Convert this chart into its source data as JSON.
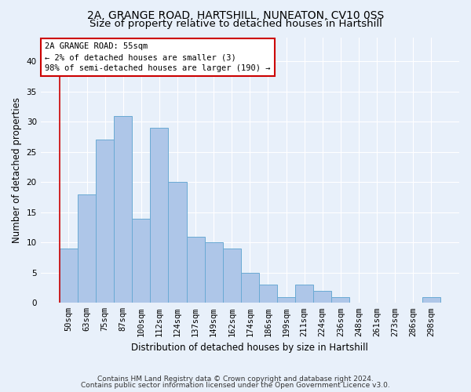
{
  "title_line1": "2A, GRANGE ROAD, HARTSHILL, NUNEATON, CV10 0SS",
  "title_line2": "Size of property relative to detached houses in Hartshill",
  "xlabel": "Distribution of detached houses by size in Hartshill",
  "ylabel": "Number of detached properties",
  "categories": [
    "50sqm",
    "63sqm",
    "75sqm",
    "87sqm",
    "100sqm",
    "112sqm",
    "124sqm",
    "137sqm",
    "149sqm",
    "162sqm",
    "174sqm",
    "186sqm",
    "199sqm",
    "211sqm",
    "224sqm",
    "236sqm",
    "248sqm",
    "261sqm",
    "273sqm",
    "286sqm",
    "298sqm"
  ],
  "values": [
    9,
    18,
    27,
    31,
    14,
    29,
    20,
    11,
    10,
    9,
    5,
    3,
    1,
    3,
    2,
    1,
    0,
    0,
    0,
    0,
    1
  ],
  "bar_color": "#aec6e8",
  "bar_edge_color": "#6aaad4",
  "annotation_line1": "2A GRANGE ROAD: 55sqm",
  "annotation_line2": "← 2% of detached houses are smaller (3)",
  "annotation_line3": "98% of semi-detached houses are larger (190) →",
  "annotation_box_color": "#ffffff",
  "annotation_box_edge": "#cc0000",
  "marker_line_color": "#cc0000",
  "ylim": [
    0,
    44
  ],
  "yticks": [
    0,
    5,
    10,
    15,
    20,
    25,
    30,
    35,
    40
  ],
  "footer_line1": "Contains HM Land Registry data © Crown copyright and database right 2024.",
  "footer_line2": "Contains public sector information licensed under the Open Government Licence v3.0.",
  "bg_color": "#e8f0fa",
  "plot_bg_color": "#e8f0fa",
  "grid_color": "#ffffff",
  "title1_fontsize": 10,
  "title2_fontsize": 9.5,
  "label_fontsize": 8.5,
  "tick_fontsize": 7.5,
  "annotation_fontsize": 7.5,
  "footer_fontsize": 6.5
}
